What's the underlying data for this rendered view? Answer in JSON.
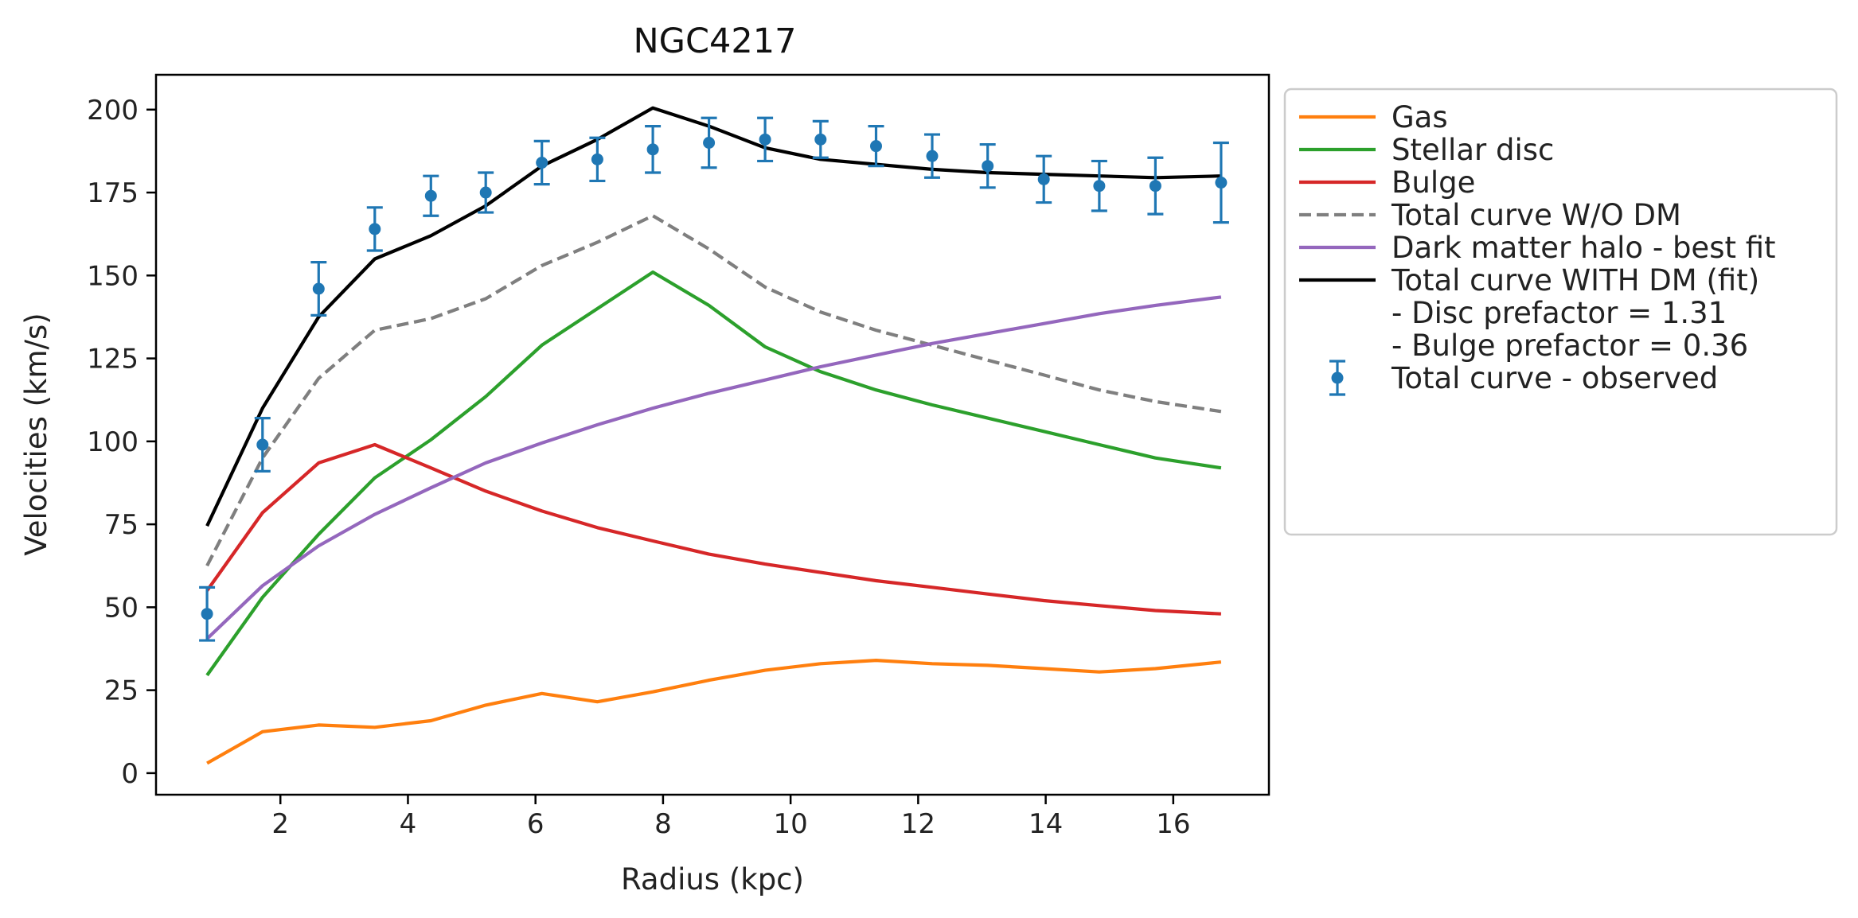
{
  "chart_data": {
    "type": "line",
    "title": "NGC4217",
    "xlabel": "Radius (kpc)",
    "ylabel": "Velocities (km/s)",
    "xlim": [
      0.05,
      17.5
    ],
    "ylim": [
      -6.5,
      210.5
    ],
    "xticks": [
      2,
      4,
      6,
      8,
      10,
      12,
      14,
      16
    ],
    "yticks": [
      0,
      25,
      50,
      75,
      100,
      125,
      150,
      175,
      200
    ],
    "grid": false,
    "legend_position": "outside-right",
    "x": [
      0.85,
      1.72,
      2.6,
      3.48,
      4.36,
      5.22,
      6.1,
      6.97,
      7.84,
      8.72,
      9.6,
      10.47,
      11.34,
      12.22,
      13.09,
      13.97,
      14.84,
      15.72,
      16.75
    ],
    "series": [
      {
        "name": "Gas",
        "color": "#ff7f0e",
        "style": "solid",
        "values": [
          3,
          12.5,
          14.5,
          13.8,
          15.8,
          20.5,
          24,
          21.5,
          24.5,
          28,
          31,
          33,
          34,
          33,
          32.5,
          31.5,
          30.5,
          31.5,
          33.5
        ]
      },
      {
        "name": "Stellar disc",
        "color": "#2ca02c",
        "style": "solid",
        "values": [
          29.5,
          53,
          72,
          89,
          100.5,
          113.5,
          129,
          140,
          151,
          141,
          128.5,
          121,
          115.5,
          111,
          107,
          103,
          99,
          95,
          92
        ]
      },
      {
        "name": "Bulge",
        "color": "#d62728",
        "style": "solid",
        "values": [
          55,
          78.5,
          93.5,
          99,
          92,
          85,
          79,
          74,
          70,
          66,
          63,
          60.5,
          58,
          56,
          54,
          52,
          50.5,
          49,
          48
        ]
      },
      {
        "name": "Total curve W/O DM",
        "color": "#7f7f7f",
        "style": "dashed",
        "values": [
          62.5,
          95,
          119,
          133.5,
          137,
          143,
          153,
          160,
          168,
          158,
          146.5,
          139,
          133.5,
          129,
          124.5,
          120,
          115.5,
          112,
          109
        ]
      },
      {
        "name": "Dark matter halo - best fit",
        "color": "#9467bd",
        "style": "solid",
        "values": [
          40.5,
          56.5,
          68.5,
          78,
          86,
          93.5,
          99.5,
          105,
          110,
          114.5,
          118.5,
          122.5,
          126,
          129.5,
          132.5,
          135.5,
          138.5,
          141,
          143.5
        ]
      },
      {
        "name": "Total curve WITH DM (fit)",
        "color": "#000000",
        "style": "solid",
        "values": [
          74.5,
          110,
          137.5,
          155,
          162,
          171,
          183,
          191,
          200.5,
          195,
          188.5,
          185,
          183.5,
          182,
          181,
          180.5,
          180,
          179.5,
          180
        ]
      }
    ],
    "observed": {
      "name": "Total curve - observed",
      "color": "#1f77b4",
      "values": [
        48,
        99,
        146,
        164,
        174,
        175,
        184,
        185,
        188,
        190,
        191,
        191,
        189,
        186,
        183,
        179,
        177,
        177,
        178
      ],
      "errors": [
        8,
        8,
        8,
        6.5,
        6,
        6,
        6.5,
        6.5,
        7,
        7.5,
        6.5,
        5.5,
        6,
        6.5,
        6.5,
        7,
        7.5,
        8.5,
        12
      ]
    },
    "legend_notes": [
      "- Disc prefactor = 1.31",
      "- Bulge prefactor = 0.36"
    ],
    "legend_order": [
      "Gas",
      "Stellar disc",
      "Bulge",
      "Total curve W/O DM",
      "Dark matter halo - best fit",
      "Total curve WITH DM (fit)",
      "- Disc prefactor = 1.31",
      "- Bulge prefactor = 0.36",
      "Total curve - observed"
    ]
  }
}
